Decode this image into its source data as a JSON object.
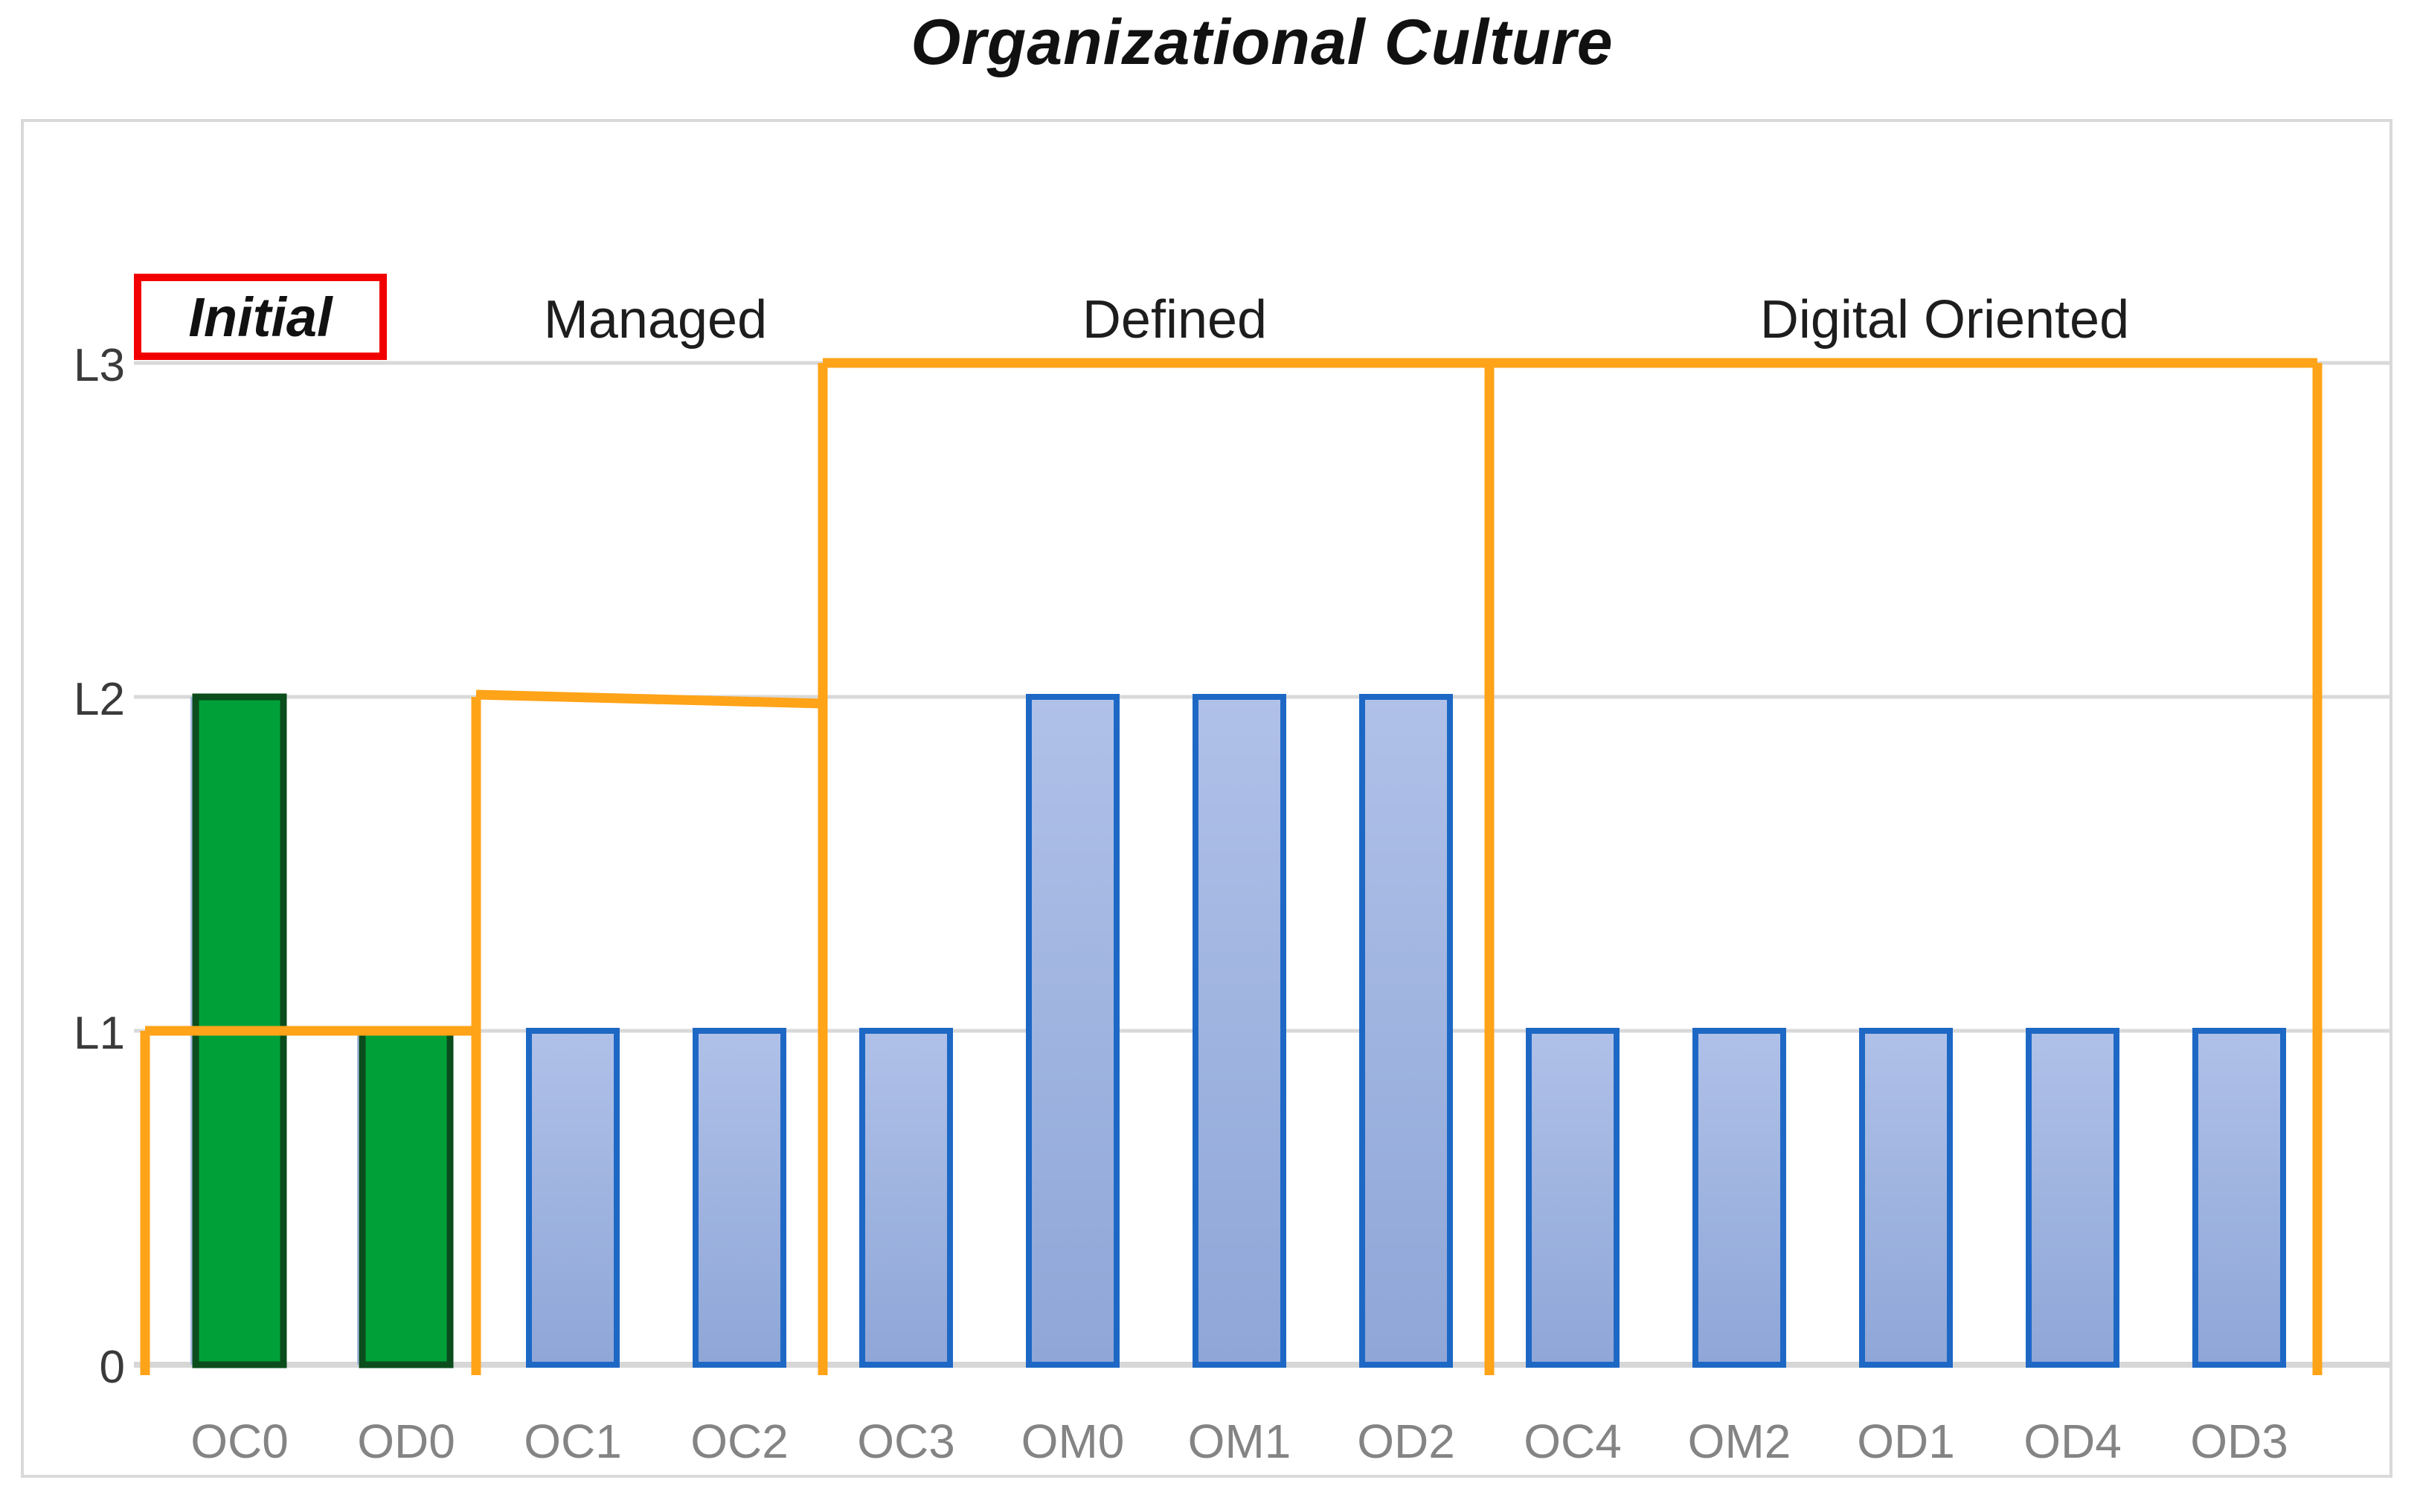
{
  "chart_data": {
    "type": "bar",
    "title": "Organizational Culture",
    "categories": [
      "OC0",
      "OD0",
      "OC1",
      "OC2",
      "OC3",
      "OM0",
      "OM1",
      "OD2",
      "OC4",
      "OM2",
      "OD1",
      "OD4",
      "OD3"
    ],
    "values": [
      2,
      1,
      1,
      1,
      1,
      2,
      2,
      2,
      1,
      1,
      1,
      1,
      1
    ],
    "bar_styles": [
      "green",
      "green",
      "blue",
      "blue",
      "blue",
      "blue",
      "blue",
      "blue",
      "blue",
      "blue",
      "blue",
      "blue",
      "blue"
    ],
    "y_ticks": [
      {
        "label": "0",
        "value": 0
      },
      {
        "label": "L1",
        "value": 1
      },
      {
        "label": "L2",
        "value": 2
      },
      {
        "label": "L3",
        "value": 3
      }
    ],
    "ylim": [
      0,
      3
    ],
    "grid": "horizontal",
    "legend": "none",
    "regions": [
      {
        "label": "Initial",
        "from": 0,
        "to": 1,
        "level": 1,
        "boxed": true
      },
      {
        "label": "Managed",
        "from": 2,
        "to": 3,
        "level": 2,
        "boxed": false
      },
      {
        "label": "Defined",
        "from": 4,
        "to": 7,
        "level": 3,
        "boxed": false
      },
      {
        "label": "Digital Oriented",
        "from": 8,
        "to": 12,
        "level": 3,
        "boxed": false
      }
    ],
    "colors": {
      "bar_blue_fill_top": "#B0C1E8",
      "bar_blue_fill_mid": "#9DB2DF",
      "bar_blue_fill_bottom": "#8FA6D7",
      "bar_blue_border": "#1E68C5",
      "bar_green_fill": "#00A039",
      "bar_green_border": "#0B4D1C",
      "region_line": "#FFA318",
      "highlight_box": "#F20000",
      "gridline": "#D9D9D9",
      "baseline": "#D7D7D7",
      "frame_border": "#D9D9D9",
      "x_label": "#848484",
      "y_label": "#3A3A3A",
      "title": "#111111"
    }
  }
}
